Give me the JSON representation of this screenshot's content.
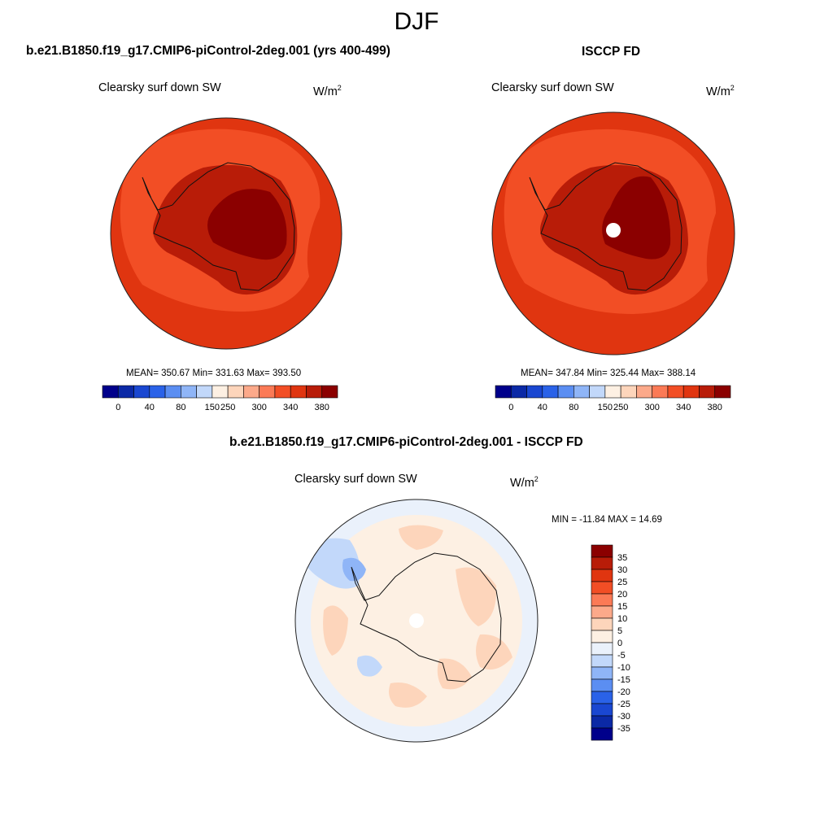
{
  "header": {
    "season": "DJF"
  },
  "colors": {
    "cb_abs": [
      "#00008b",
      "#0b29a6",
      "#1a47d1",
      "#2a62e8",
      "#5b8ef2",
      "#8fb5f7",
      "#c2d8fa",
      "#fdf0e3",
      "#fdd5bb",
      "#fca98a",
      "#fb7a56",
      "#f24e25",
      "#e03510",
      "#b81c08",
      "#8b0000"
    ],
    "cb_diff": [
      "#8b0000",
      "#b81c08",
      "#e03510",
      "#f24e25",
      "#fb7a56",
      "#fca98a",
      "#fdd5bb",
      "#fdf0e3",
      "#eaf1fb",
      "#c2d8fa",
      "#8fb5f7",
      "#5b8ef2",
      "#2a62e8",
      "#1a47d1",
      "#0b29a6",
      "#00008b"
    ],
    "coast": "#111111",
    "map_edge": "#222222"
  },
  "panel_left": {
    "title": "b.e21.B1850.f19_g17.CMIP6-piControl-2deg.001 (yrs 400-499)",
    "variable": "Clearsky surf down SW",
    "units_base": "W/m",
    "units_exp": "2",
    "stats": "MEAN= 350.67  Min= 331.63  Max= 393.50",
    "ticks": [
      "0",
      "40",
      "80",
      "150",
      "250",
      "300",
      "340",
      "380"
    ]
  },
  "panel_right": {
    "title": "ISCCP FD",
    "variable": "Clearsky surf down SW",
    "units_base": "W/m",
    "units_exp": "2",
    "stats": "MEAN= 347.84  Min= 325.44  Max= 388.14",
    "ticks": [
      "0",
      "40",
      "80",
      "150",
      "250",
      "300",
      "340",
      "380"
    ]
  },
  "panel_diff": {
    "title": "b.e21.B1850.f19_g17.CMIP6-piControl-2deg.001 - ISCCP FD",
    "variable": "Clearsky surf down SW",
    "units_base": "W/m",
    "units_exp": "2",
    "minmax": "MIN = -11.84 MAX =  14.69",
    "ticks": [
      "35",
      "30",
      "25",
      "20",
      "15",
      "10",
      "5",
      "0",
      "-5",
      "-10",
      "-15",
      "-20",
      "-25",
      "-30",
      "-35"
    ]
  }
}
